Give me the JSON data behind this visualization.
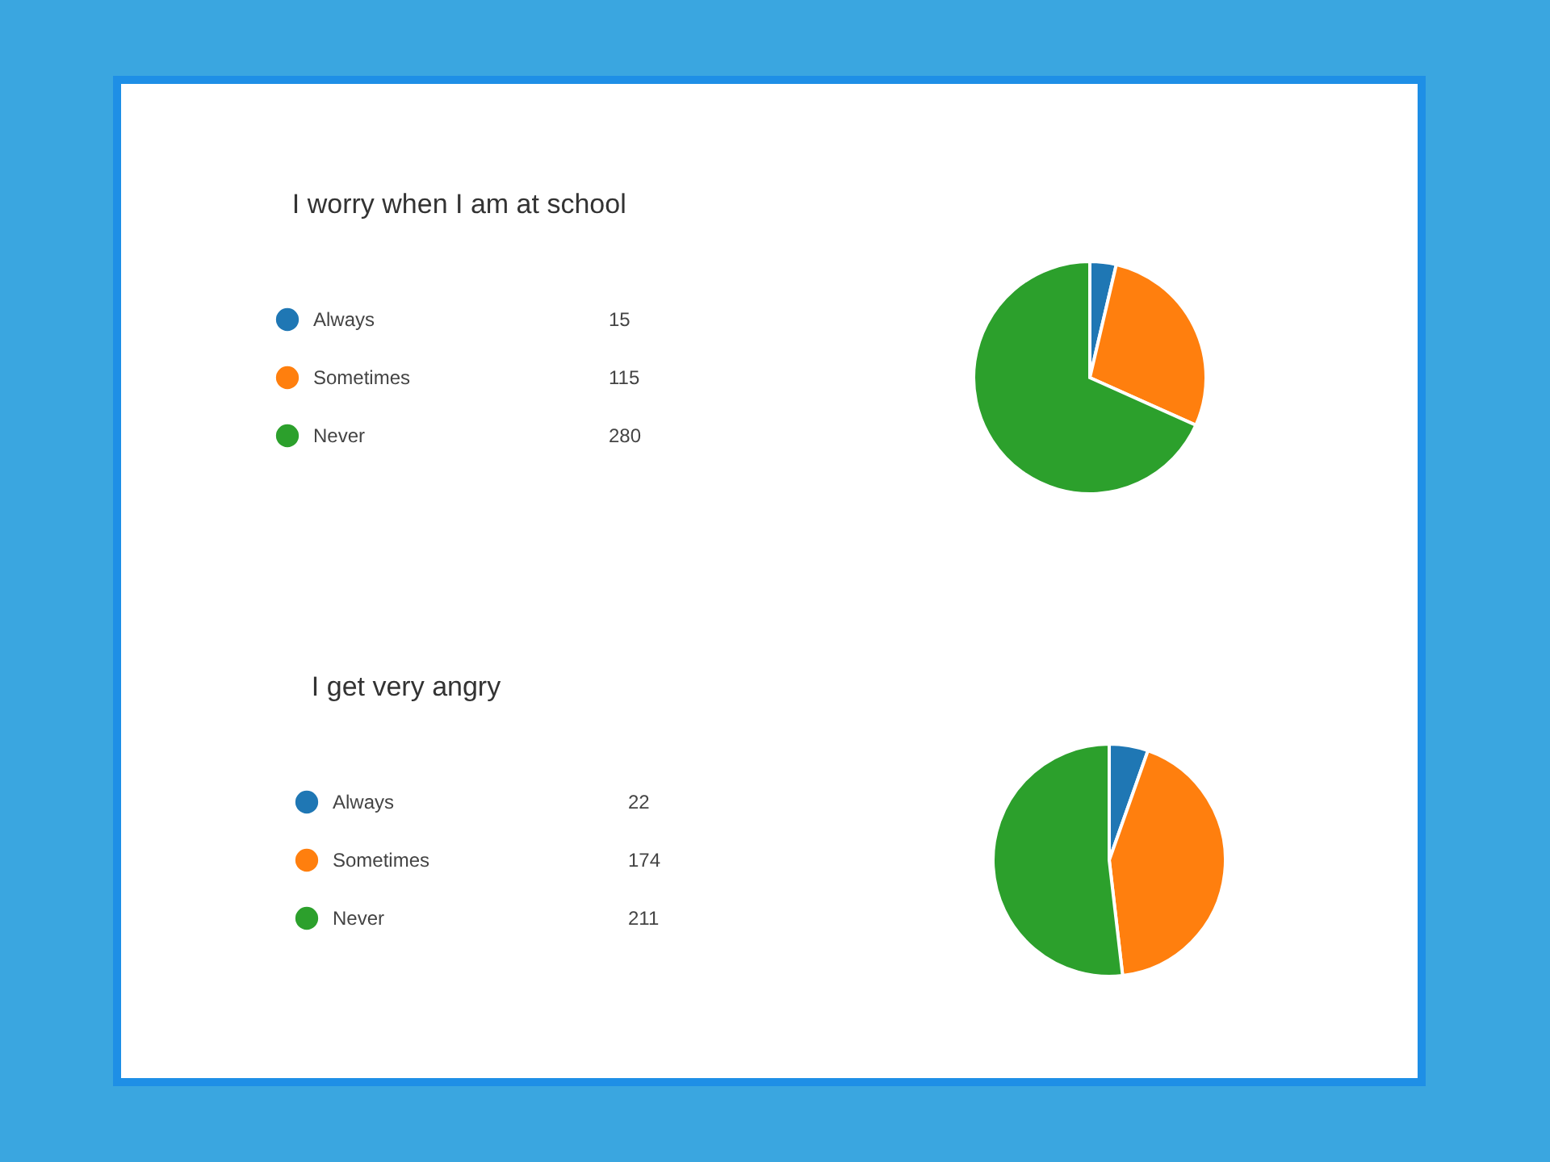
{
  "chart_data": [
    {
      "type": "pie",
      "title": "I worry when I am at school",
      "categories": [
        "Always",
        "Sometimes",
        "Never"
      ],
      "values": [
        15,
        115,
        280
      ],
      "colors": [
        "#1f77b4",
        "#ff7f0e",
        "#2ca02c"
      ],
      "data_labels": true,
      "legend": "left"
    },
    {
      "type": "pie",
      "title": "I get very angry",
      "categories": [
        "Always",
        "Sometimes",
        "Never"
      ],
      "values": [
        22,
        174,
        211
      ],
      "colors": [
        "#1f77b4",
        "#ff7f0e",
        "#2ca02c"
      ],
      "data_labels": true,
      "legend": "left"
    }
  ]
}
